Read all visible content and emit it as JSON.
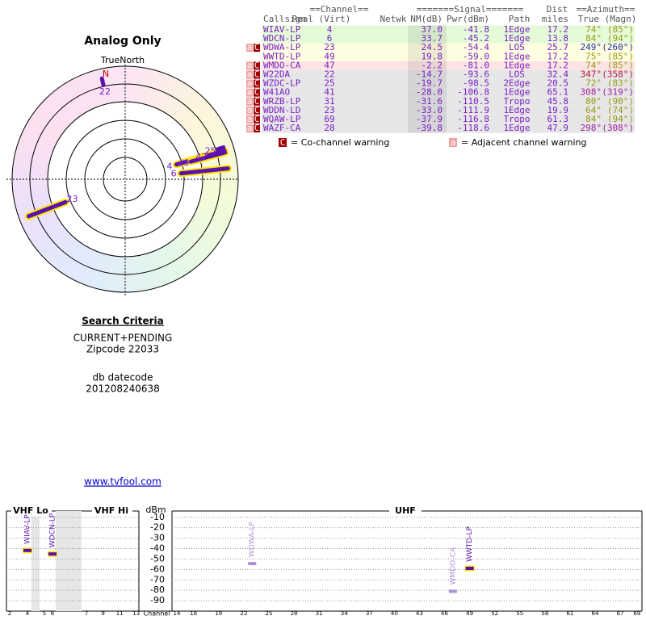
{
  "polar": {
    "title": "Analog Only",
    "north_label": "TrueNorth",
    "north": "N"
  },
  "search": {
    "title": "Search Criteria",
    "line1": "CURRENT+PENDING",
    "line2": "Zipcode 22033",
    "line3": "db datecode",
    "line4": "201208240638"
  },
  "link": "www.tvfool.com",
  "table": {
    "group_headers": {
      "channel": "==Channel==",
      "signal": "=======Signal=======",
      "dist": "Dist",
      "azimuth": "==Azimuth=="
    },
    "columns": {
      "callsign": "Callsign",
      "real_virt": "Real (Virt)",
      "netwk": "Netwk",
      "nm": "NM(dB)",
      "pwr": "Pwr(dBm)",
      "path": "Path",
      "dist": "miles",
      "azimuth": "True (Magn)"
    },
    "rows": [
      {
        "callsign": "WIAV-LP",
        "real": "4",
        "nm": "37.0",
        "pwr": "-41.8",
        "path": "1Edge",
        "dist": "17.2",
        "az_true": "74°",
        "az_magn": "(85°)",
        "color": "#e4fbd8",
        "az_color": "#9a9a10"
      },
      {
        "callsign": "WDCN-LP",
        "real": "6",
        "nm": "33.7",
        "pwr": "-45.2",
        "path": "1Edge",
        "dist": "13.8",
        "az_true": "84°",
        "az_magn": "(94°)",
        "color": "#e4fbd8",
        "az_color": "#9a9a10"
      },
      {
        "callsign": "WDWA-LP",
        "real": "23",
        "nm": "24.5",
        "pwr": "-54.4",
        "path": "LOS",
        "dist": "25.7",
        "az_true": "249°",
        "az_magn": "(260°)",
        "color": "#fffde0",
        "az_color": "#2030a0",
        "warn": [
          "a",
          "C"
        ]
      },
      {
        "callsign": "WWTD-LP",
        "real": "49",
        "nm": "19.8",
        "pwr": "-59.0",
        "path": "1Edge",
        "dist": "17.2",
        "az_true": "75°",
        "az_magn": "(85°)",
        "color": "#fffde0",
        "az_color": "#9a9a10"
      },
      {
        "callsign": "WMDO-CA",
        "real": "47",
        "nm": "-2.2",
        "pwr": "-81.0",
        "path": "1Edge",
        "dist": "17.2",
        "az_true": "74°",
        "az_magn": "(85°)",
        "color": "#fde4e4",
        "az_color": "#9a9a10",
        "warn": [
          "a",
          "C"
        ]
      },
      {
        "callsign": "W22DA",
        "real": "22",
        "nm": "-14.7",
        "pwr": "-93.6",
        "path": "LOS",
        "dist": "32.4",
        "az_true": "347°",
        "az_magn": "(358°)",
        "color": "#e6e6e6",
        "az_color": "#c01040",
        "warn": [
          "a",
          "C"
        ]
      },
      {
        "callsign": "WZDC-LP",
        "real": "25",
        "nm": "-19.7",
        "pwr": "-98.5",
        "path": "2Edge",
        "dist": "20.5",
        "az_true": "72°",
        "az_magn": "(83°)",
        "color": "#e6e6e6",
        "az_color": "#9a9a10",
        "warn": [
          "a",
          "C"
        ]
      },
      {
        "callsign": "W41AO",
        "real": "41",
        "nm": "-28.0",
        "pwr": "-106.8",
        "path": "1Edge",
        "dist": "65.1",
        "az_true": "308°",
        "az_magn": "(319°)",
        "color": "#e6e6e6",
        "az_color": "#a020a0",
        "warn": [
          "a",
          "C"
        ]
      },
      {
        "callsign": "WRZB-LP",
        "real": "31",
        "nm": "-31.6",
        "pwr": "-110.5",
        "path": "Tropo",
        "dist": "45.8",
        "az_true": "80°",
        "az_magn": "(90°)",
        "color": "#e6e6e6",
        "az_color": "#9a9a10",
        "warn": [
          "a",
          "C"
        ]
      },
      {
        "callsign": "WDDN-LD",
        "real": "23",
        "nm": "-33.0",
        "pwr": "-111.9",
        "path": "1Edge",
        "dist": "19.9",
        "az_true": "64°",
        "az_magn": "(74°)",
        "color": "#e6e6e6",
        "az_color": "#9a9a10",
        "warn": [
          "a",
          "C"
        ]
      },
      {
        "callsign": "WQAW-LP",
        "real": "69",
        "nm": "-37.9",
        "pwr": "-116.8",
        "path": "Tropo",
        "dist": "61.3",
        "az_true": "84°",
        "az_magn": "(94°)",
        "color": "#e6e6e6",
        "az_color": "#9a9a10",
        "warn": [
          "a",
          "C"
        ]
      },
      {
        "callsign": "WAZF-CA",
        "real": "28",
        "nm": "-39.8",
        "pwr": "-118.6",
        "path": "1Edge",
        "dist": "47.9",
        "az_true": "298°",
        "az_magn": "(308°)",
        "color": "#e6e6e6",
        "az_color": "#a020a0",
        "warn": [
          "a",
          "C"
        ]
      }
    ],
    "legend": {
      "co_box": "C",
      "co_text": "= Co-channel warning",
      "adj_box": "a",
      "adj_text": "= Adjacent channel warning"
    }
  },
  "spectrum": {
    "bands": {
      "vhf_lo": "VHF Lo",
      "vhf_hi": "VHF Hi",
      "uhf": "UHF"
    },
    "ylabel": "dBm",
    "xlabel": "Channel",
    "ylim": [
      -100,
      -4
    ],
    "yticks": [
      -10,
      -20,
      -30,
      -40,
      -50,
      -60,
      -70,
      -80,
      -90
    ],
    "vhf_lo_channels": [
      2,
      4,
      5,
      6
    ],
    "vhf_hi_channels": [
      7,
      9,
      11,
      13
    ],
    "uhf_channels": [
      14,
      16,
      19,
      22,
      25,
      28,
      31,
      34,
      37,
      40,
      43,
      46,
      49,
      52,
      55,
      58,
      61,
      64,
      67,
      69
    ]
  }
}
